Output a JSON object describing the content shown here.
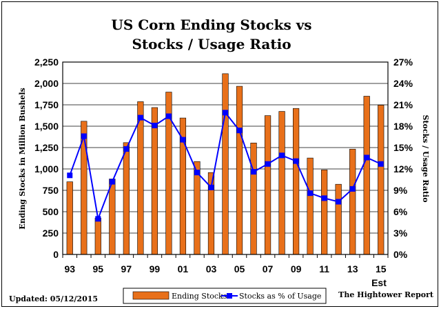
{
  "chart_data": {
    "type": "bar+line",
    "title_line1": "US Corn Ending Stocks vs",
    "title_line2": "Stocks / Usage Ratio",
    "ylabel_left": "Ending Stocks in Million Bushels",
    "ylabel_right": "Stocks / Usage Ratio",
    "ylim_left": [
      0,
      2250
    ],
    "ylim_right": [
      0,
      27
    ],
    "left_ticks": [
      "0",
      "250",
      "500",
      "750",
      "1,000",
      "1,250",
      "1,500",
      "1,750",
      "2,000",
      "2,250"
    ],
    "right_ticks": [
      "0%",
      "3%",
      "6%",
      "9%",
      "12%",
      "15%",
      "18%",
      "21%",
      "24%",
      "27%"
    ],
    "categories": [
      "93",
      "94",
      "95",
      "96",
      "97",
      "98",
      "99",
      "00",
      "01",
      "02",
      "03",
      "04",
      "05",
      "06",
      "07",
      "08",
      "09",
      "10",
      "11",
      "12",
      "13",
      "14",
      "15"
    ],
    "x_tick_labels": [
      "93",
      "95",
      "97",
      "99",
      "01",
      "03",
      "05",
      "07",
      "09",
      "11",
      "13",
      "15"
    ],
    "x_tick_index": [
      0,
      2,
      4,
      6,
      8,
      10,
      12,
      14,
      16,
      18,
      20,
      22
    ],
    "x_extra_label": "Est",
    "grid": true,
    "series": [
      {
        "name": "Ending Stocks",
        "kind": "bar",
        "axis": "left",
        "color": "#e8701a",
        "values": [
          850,
          1558,
          426,
          883,
          1308,
          1787,
          1718,
          1899,
          1596,
          1087,
          958,
          2114,
          1967,
          1304,
          1624,
          1673,
          1708,
          1128,
          989,
          821,
          1232,
          1851,
          1746
        ]
      },
      {
        "name": "Stocks as % of Usage",
        "kind": "line",
        "axis": "right",
        "color": "#0000ff",
        "values": [
          11.1,
          16.6,
          5.0,
          10.2,
          14.8,
          19.2,
          18.1,
          19.4,
          16.1,
          11.5,
          9.4,
          19.9,
          17.4,
          11.6,
          12.7,
          13.9,
          13.1,
          8.6,
          7.9,
          7.4,
          9.2,
          13.6,
          12.7
        ]
      }
    ],
    "legend_position": "bottom-center"
  },
  "footer": {
    "updated": "Updated:  05/12/2015",
    "source": "The Hightower Report"
  },
  "colors": {
    "bar": "#e8701a",
    "line": "#0000ff",
    "grid": "#000000"
  }
}
